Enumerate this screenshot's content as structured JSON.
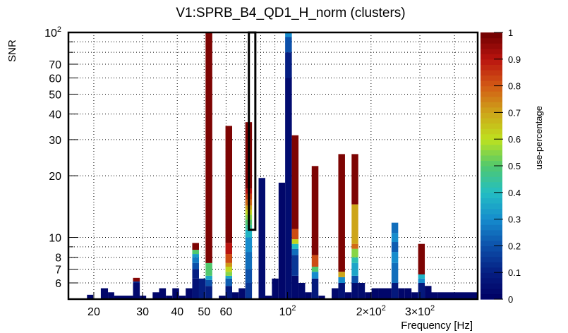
{
  "chart_data": {
    "type": "heatmap",
    "title": "V1:SPRB_B4_QD1_H_norm (clusters)",
    "xlabel": "Frequency [Hz]",
    "ylabel": "SNR",
    "xscale": "log",
    "yscale": "log",
    "xlim": [
      16.2,
      485
    ],
    "ylim": [
      5,
      100
    ],
    "grid": true,
    "x_ticks": [
      {
        "value": 20,
        "label": "20"
      },
      {
        "value": 30,
        "label": "30"
      },
      {
        "value": 40,
        "label": "40"
      },
      {
        "value": 50,
        "label": "50"
      },
      {
        "value": 60,
        "label": "60"
      },
      {
        "value": 100,
        "label": "10",
        "sup": "2"
      },
      {
        "value": 200,
        "label": "2×10",
        "sup": "2"
      },
      {
        "value": 300,
        "label": "3×10",
        "sup": "2"
      }
    ],
    "x_minor_grid": [
      70,
      80,
      90,
      400
    ],
    "y_ticks": [
      {
        "value": 100,
        "label": "10",
        "sup": "2"
      },
      {
        "value": 70,
        "label": "70"
      },
      {
        "value": 60,
        "label": "60"
      },
      {
        "value": 50,
        "label": "50"
      },
      {
        "value": 40,
        "label": "40"
      },
      {
        "value": 30,
        "label": "30"
      },
      {
        "value": 20,
        "label": "20"
      },
      {
        "value": 10,
        "label": "10"
      },
      {
        "value": 8,
        "label": "8"
      },
      {
        "value": 7,
        "label": "7"
      },
      {
        "value": 6,
        "label": "6"
      }
    ],
    "y_minor_grid": [
      90,
      80,
      9
    ],
    "colorbar": {
      "label": "use-percentage",
      "range": [
        0,
        1
      ],
      "ticks": [
        "0",
        "0.1",
        "0.2",
        "0.3",
        "0.4",
        "0.5",
        "0.6",
        "0.7",
        "0.8",
        "0.9",
        "1"
      ]
    },
    "highlight_box": {
      "xlim": [
        72.5,
        76.5
      ],
      "ylim": [
        10.9,
        100
      ]
    },
    "columns": [
      {
        "f0": 18.9,
        "f1": 19.9,
        "segments": [
          [
            5,
            5.25,
            0.02
          ]
        ]
      },
      {
        "f0": 21.2,
        "f1": 22.5,
        "segments": [
          [
            5,
            5.65,
            0.02
          ]
        ]
      },
      {
        "f0": 22.5,
        "f1": 23.7,
        "segments": [
          [
            5,
            5.4,
            0.02
          ]
        ]
      },
      {
        "f0": 23.7,
        "f1": 27.7,
        "segments": [
          [
            5,
            5.2,
            0.02
          ]
        ]
      },
      {
        "f0": 27.7,
        "f1": 29.3,
        "segments": [
          [
            5,
            6.0,
            0.03
          ],
          [
            6.0,
            6.1,
            0.12
          ],
          [
            6.1,
            6.35,
            0.97
          ]
        ]
      },
      {
        "f0": 29.3,
        "f1": 30.9,
        "segments": [
          [
            5,
            5.2,
            0.02
          ]
        ]
      },
      {
        "f0": 32.6,
        "f1": 34.4,
        "segments": [
          [
            5,
            5.4,
            0.02
          ]
        ]
      },
      {
        "f0": 34.4,
        "f1": 36.4,
        "segments": [
          [
            5,
            5.65,
            0.02
          ]
        ]
      },
      {
        "f0": 36.4,
        "f1": 38.4,
        "segments": [
          [
            5,
            5.2,
            0.02
          ]
        ]
      },
      {
        "f0": 38.4,
        "f1": 40.6,
        "segments": [
          [
            5,
            5.65,
            0.02
          ]
        ]
      },
      {
        "f0": 40.6,
        "f1": 42.9,
        "segments": [
          [
            5,
            5.2,
            0.02
          ]
        ]
      },
      {
        "f0": 42.9,
        "f1": 45.3,
        "segments": [
          [
            5,
            5.65,
            0.02
          ]
        ]
      },
      {
        "f0": 45.3,
        "f1": 47.9,
        "segments": [
          [
            5,
            6.3,
            0.06
          ],
          [
            6.3,
            7.0,
            0.1
          ],
          [
            7.0,
            7.5,
            0.2
          ],
          [
            7.5,
            8.0,
            0.27
          ],
          [
            8.0,
            8.3,
            0.33
          ],
          [
            8.3,
            8.7,
            0.5
          ],
          [
            8.7,
            9.4,
            0.98
          ]
        ]
      },
      {
        "f0": 47.9,
        "f1": 50.6,
        "segments": [
          [
            5,
            6.3,
            0.1
          ]
        ]
      },
      {
        "f0": 50.6,
        "f1": 53.5,
        "segments": [
          [
            5,
            5.8,
            0.1
          ],
          [
            5.8,
            6.2,
            0.2
          ],
          [
            6.2,
            6.5,
            0.35
          ],
          [
            6.5,
            7.5,
            0.5
          ],
          [
            7.5,
            100,
            0.98
          ]
        ]
      },
      {
        "f0": 56.5,
        "f1": 59.7,
        "segments": [
          [
            5,
            5.2,
            0.02
          ]
        ]
      },
      {
        "f0": 59.7,
        "f1": 63.1,
        "segments": [
          [
            5,
            5.8,
            0.08
          ],
          [
            5.8,
            6.3,
            0.22
          ],
          [
            6.3,
            6.5,
            0.35
          ],
          [
            6.5,
            6.8,
            0.55
          ],
          [
            6.8,
            7.2,
            0.62
          ],
          [
            7.2,
            7.5,
            0.72
          ],
          [
            7.5,
            8.3,
            0.82
          ],
          [
            8.3,
            9.4,
            0.9
          ],
          [
            9.4,
            35,
            0.98
          ]
        ]
      },
      {
        "f0": 63.1,
        "f1": 66.6,
        "segments": [
          [
            5,
            5.4,
            0.02
          ]
        ]
      },
      {
        "f0": 66.6,
        "f1": 70.4,
        "segments": [
          [
            5,
            5.65,
            0.03
          ]
        ]
      },
      {
        "f0": 70.4,
        "f1": 74.4,
        "segments": [
          [
            5,
            6.0,
            0.15
          ],
          [
            6.0,
            7.0,
            0.2
          ],
          [
            7.0,
            8.5,
            0.25
          ],
          [
            8.5,
            10.0,
            0.3
          ],
          [
            10.0,
            10.9,
            0.38
          ],
          [
            10.9,
            11.5,
            0.45
          ],
          [
            11.5,
            12.2,
            0.5
          ],
          [
            12.2,
            12.9,
            0.55
          ],
          [
            12.9,
            13.6,
            0.62
          ],
          [
            13.6,
            14.3,
            0.7
          ],
          [
            14.3,
            15.3,
            0.78
          ],
          [
            15.3,
            16.3,
            0.84
          ],
          [
            16.3,
            17.3,
            0.9
          ],
          [
            17.3,
            36.5,
            0.98
          ]
        ]
      },
      {
        "f0": 78.6,
        "f1": 83.1,
        "segments": [
          [
            5,
            19.5,
            0.04
          ]
        ]
      },
      {
        "f0": 83.1,
        "f1": 87.8,
        "segments": [
          [
            5,
            5.2,
            0.02
          ]
        ]
      },
      {
        "f0": 87.8,
        "f1": 92.8,
        "segments": [
          [
            5,
            6.3,
            0.02
          ]
        ]
      },
      {
        "f0": 92.8,
        "f1": 98.0,
        "segments": [
          [
            5,
            18.5,
            0.02
          ]
        ]
      },
      {
        "f0": 98.0,
        "f1": 103.6,
        "segments": [
          [
            5,
            60,
            0.04
          ],
          [
            60,
            80,
            0.1
          ],
          [
            80,
            95,
            0.2
          ],
          [
            95,
            100,
            0.3
          ]
        ]
      },
      {
        "f0": 103.6,
        "f1": 109.5,
        "segments": [
          [
            5,
            6.5,
            0.03
          ],
          [
            6.5,
            8.2,
            0.15
          ],
          [
            8.2,
            8.8,
            0.25
          ],
          [
            8.8,
            9.3,
            0.4
          ],
          [
            9.3,
            9.8,
            0.62
          ],
          [
            9.8,
            11.0,
            0.82
          ],
          [
            11.0,
            31.5,
            0.98
          ]
        ]
      },
      {
        "f0": 109.5,
        "f1": 115.7,
        "segments": [
          [
            5,
            6.0,
            0.03
          ]
        ]
      },
      {
        "f0": 115.7,
        "f1": 122.2,
        "segments": [
          [
            5,
            5.4,
            0.02
          ]
        ]
      },
      {
        "f0": 122.2,
        "f1": 129.2,
        "segments": [
          [
            5,
            6.3,
            0.08
          ],
          [
            6.3,
            6.8,
            0.3
          ],
          [
            6.8,
            7.2,
            0.5
          ],
          [
            7.2,
            8.2,
            0.82
          ],
          [
            8.2,
            22.3,
            0.98
          ]
        ]
      },
      {
        "f0": 129.2,
        "f1": 136.5,
        "segments": [
          [
            5,
            5.2,
            0.02
          ]
        ]
      },
      {
        "f0": 144.2,
        "f1": 152.4,
        "segments": [
          [
            5,
            5.65,
            0.03
          ]
        ]
      },
      {
        "f0": 152.4,
        "f1": 161.1,
        "segments": [
          [
            5,
            6.0,
            0.06
          ],
          [
            6.0,
            6.4,
            0.3
          ],
          [
            6.4,
            6.8,
            0.7
          ],
          [
            6.8,
            25.5,
            0.98
          ]
        ]
      },
      {
        "f0": 161.1,
        "f1": 170.2,
        "segments": [
          [
            5,
            5.4,
            0.02
          ]
        ]
      },
      {
        "f0": 170.2,
        "f1": 179.9,
        "segments": [
          [
            5,
            6.0,
            0.04
          ],
          [
            6.0,
            6.5,
            0.2
          ],
          [
            6.5,
            7.5,
            0.35
          ],
          [
            7.5,
            8.0,
            0.42
          ],
          [
            8.0,
            8.8,
            0.55
          ],
          [
            8.8,
            9.3,
            0.78
          ],
          [
            9.3,
            14.5,
            0.7
          ],
          [
            14.5,
            25.5,
            0.98
          ]
        ]
      },
      {
        "f0": 179.9,
        "f1": 190.1,
        "segments": [
          [
            5,
            6.0,
            0.04
          ]
        ]
      },
      {
        "f0": 190.1,
        "f1": 200.9,
        "segments": [
          [
            5,
            5.4,
            0.02
          ]
        ]
      },
      {
        "f0": 200.9,
        "f1": 212.3,
        "segments": [
          [
            5,
            5.65,
            0.02
          ]
        ]
      },
      {
        "f0": 212.3,
        "f1": 224.4,
        "segments": [
          [
            5,
            5.65,
            0.02
          ]
        ]
      },
      {
        "f0": 224.4,
        "f1": 237.1,
        "segments": [
          [
            5,
            5.65,
            0.02
          ]
        ]
      },
      {
        "f0": 237.1,
        "f1": 250.6,
        "segments": [
          [
            5,
            6.0,
            0.08
          ],
          [
            6.0,
            7.5,
            0.25
          ],
          [
            7.5,
            8.5,
            0.3
          ],
          [
            8.5,
            9.5,
            0.22
          ],
          [
            9.5,
            10.5,
            0.3
          ],
          [
            10.5,
            11.8,
            0.25
          ]
        ]
      },
      {
        "f0": 250.6,
        "f1": 264.8,
        "segments": [
          [
            5,
            5.65,
            0.02
          ]
        ]
      },
      {
        "f0": 264.8,
        "f1": 279.9,
        "segments": [
          [
            5,
            5.65,
            0.02
          ]
        ]
      },
      {
        "f0": 279.9,
        "f1": 295.8,
        "segments": [
          [
            5,
            5.4,
            0.02
          ]
        ]
      },
      {
        "f0": 295.8,
        "f1": 312.6,
        "segments": [
          [
            5,
            6.0,
            0.08
          ],
          [
            6.0,
            6.3,
            0.3
          ],
          [
            6.3,
            6.6,
            0.38
          ],
          [
            6.6,
            9.3,
            0.98
          ]
        ]
      },
      {
        "f0": 312.6,
        "f1": 330.4,
        "segments": [
          [
            5,
            5.8,
            0.02
          ]
        ]
      },
      {
        "f0": 330.4,
        "f1": 349.1,
        "segments": [
          [
            5,
            5.4,
            0.02
          ]
        ]
      },
      {
        "f0": 349.1,
        "f1": 485,
        "segments": [
          [
            5,
            5.4,
            0.02
          ]
        ]
      }
    ]
  }
}
